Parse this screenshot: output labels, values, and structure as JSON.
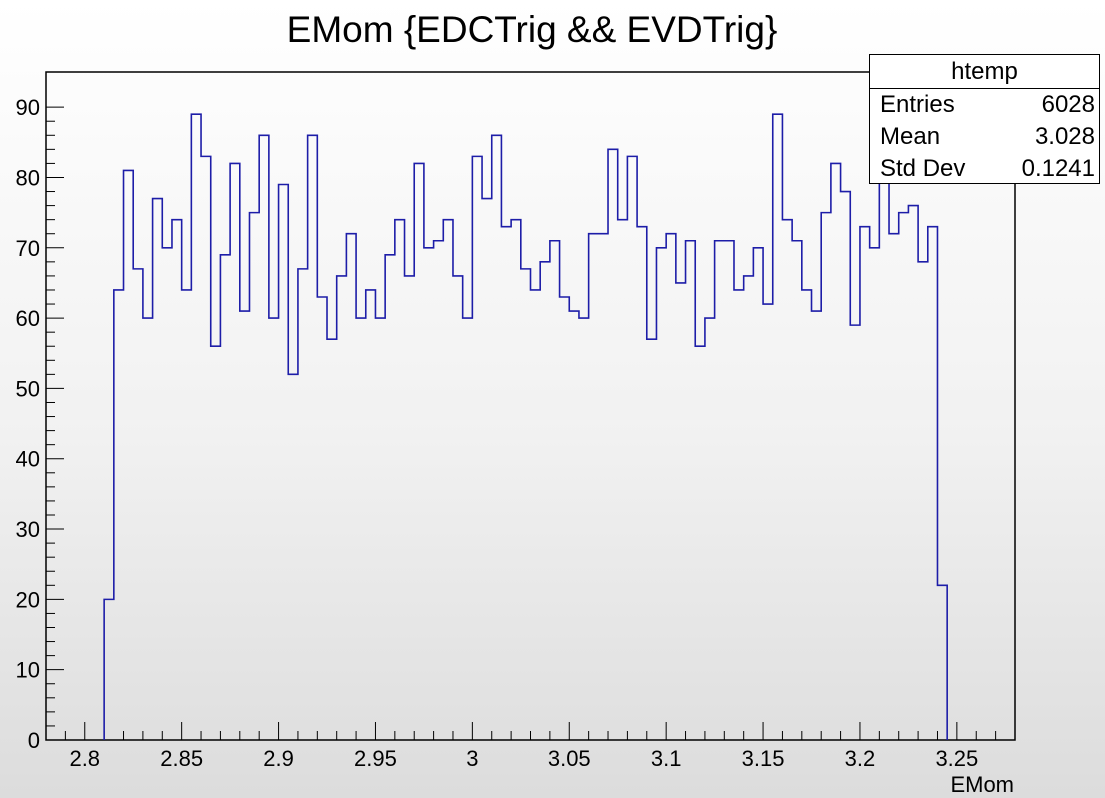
{
  "chart_data": {
    "type": "histogram",
    "title": "EMom {EDCTrig && EVDTrig}",
    "xlabel": "EMom",
    "ylabel": "",
    "xlim": [
      2.78,
      3.28
    ],
    "ylim": [
      0,
      95
    ],
    "bin_width": 0.005,
    "bin_start": 2.81,
    "values": [
      20,
      64,
      81,
      67,
      60,
      77,
      70,
      74,
      64,
      89,
      83,
      56,
      69,
      82,
      61,
      75,
      86,
      60,
      79,
      52,
      67,
      86,
      63,
      57,
      66,
      72,
      60,
      64,
      60,
      69,
      74,
      66,
      82,
      70,
      71,
      74,
      66,
      60,
      83,
      77,
      86,
      73,
      74,
      67,
      64,
      68,
      71,
      63,
      61,
      60,
      72,
      72,
      84,
      74,
      83,
      73,
      57,
      70,
      72,
      65,
      71,
      56,
      60,
      71,
      71,
      64,
      66,
      70,
      62,
      89,
      74,
      71,
      64,
      61,
      75,
      82,
      78,
      59,
      73,
      70,
      80,
      72,
      75,
      76,
      68,
      73,
      22
    ],
    "xticks": [
      2.8,
      2.85,
      2.9,
      2.95,
      3,
      3.05,
      3.1,
      3.15,
      3.2,
      3.25
    ],
    "xtick_labels": [
      "2.8",
      "2.85",
      "2.9",
      "2.95",
      "3",
      "3.05",
      "3.1",
      "3.15",
      "3.2",
      "3.25"
    ],
    "yticks": [
      0,
      10,
      20,
      30,
      40,
      50,
      60,
      70,
      80,
      90
    ],
    "ytick_labels": [
      "0",
      "10",
      "20",
      "30",
      "40",
      "50",
      "60",
      "70",
      "80",
      "90"
    ],
    "line_color": "#1d1da8",
    "grid": false
  },
  "stats": {
    "name": "htemp",
    "rows": [
      {
        "label": "Entries",
        "value": "6028"
      },
      {
        "label": "Mean",
        "value": "3.028"
      },
      {
        "label": "Std Dev",
        "value": "0.1241"
      }
    ]
  }
}
